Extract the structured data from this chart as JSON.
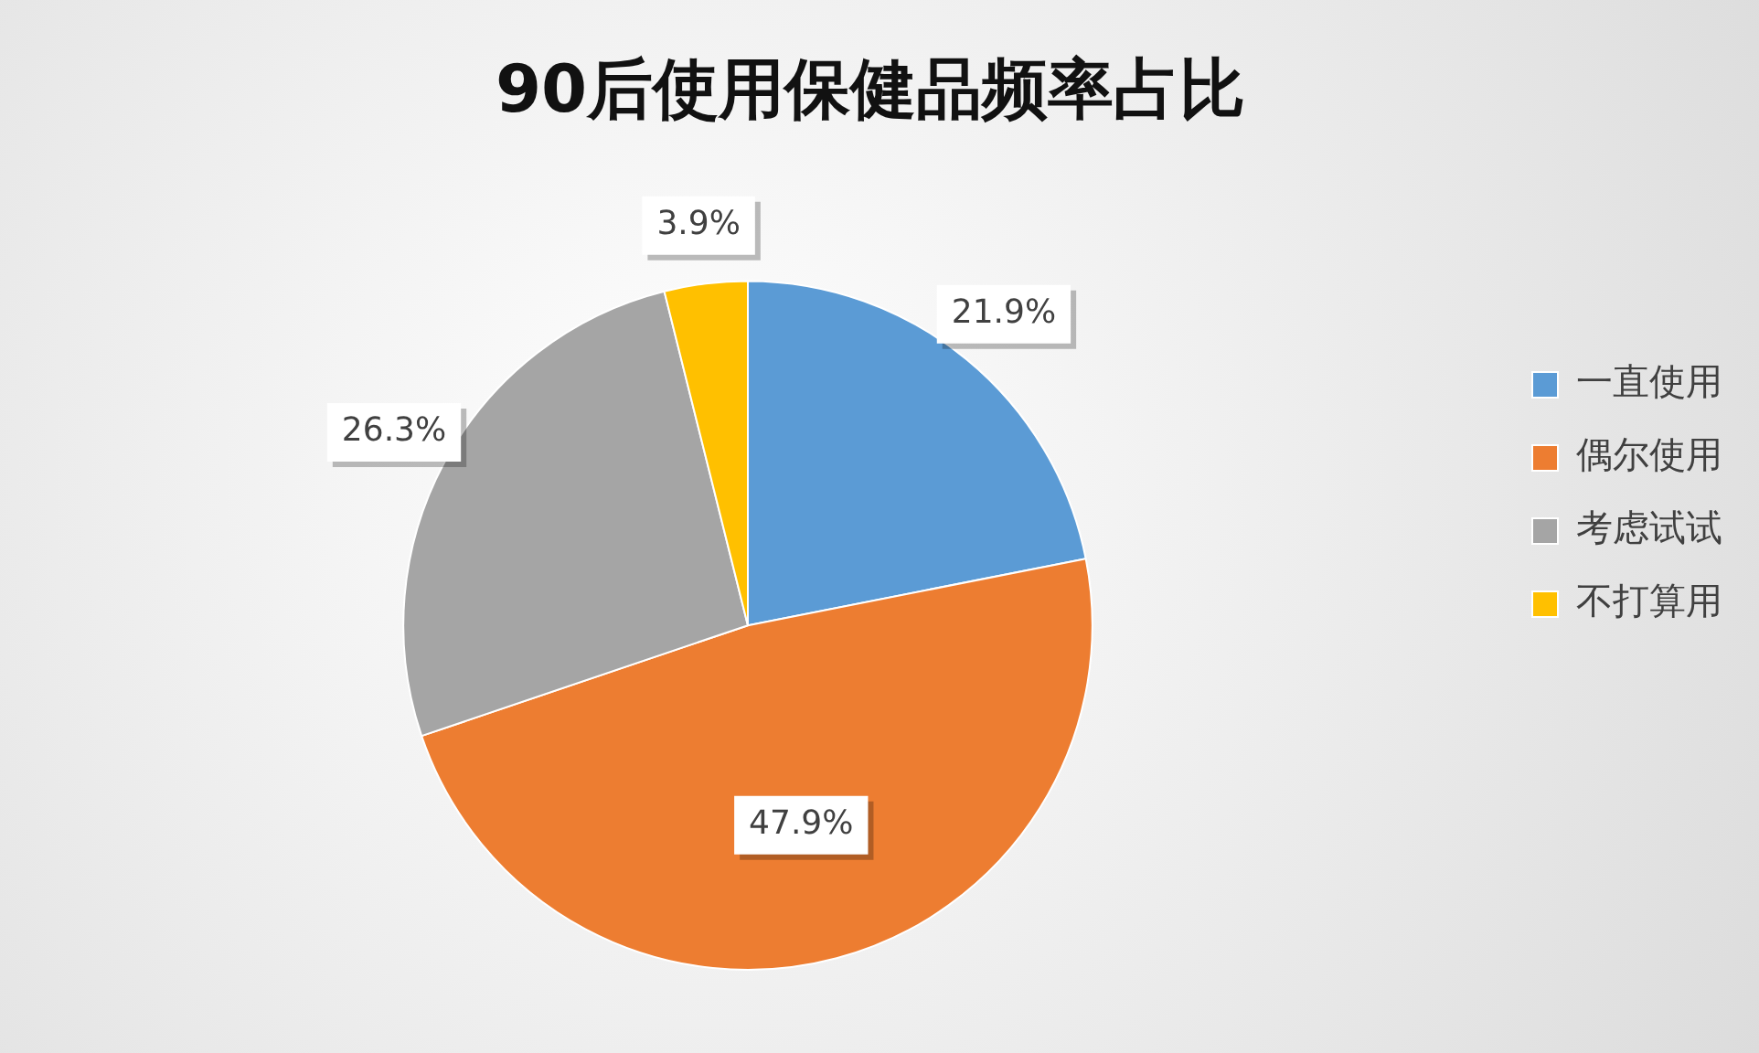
{
  "chart_data": {
    "type": "pie",
    "title": "90后使用保健品频率占比",
    "categories": [
      "一直使用",
      "偶尔使用",
      "考虑试试",
      "不打算用"
    ],
    "values": [
      21.9,
      47.9,
      26.3,
      3.9
    ],
    "colors": [
      "#5b9bd5",
      "#ed7d31",
      "#a5a5a5",
      "#ffc000"
    ],
    "value_labels": [
      "21.9%",
      "47.9%",
      "26.3%",
      "3.9%"
    ],
    "legend": "right"
  }
}
